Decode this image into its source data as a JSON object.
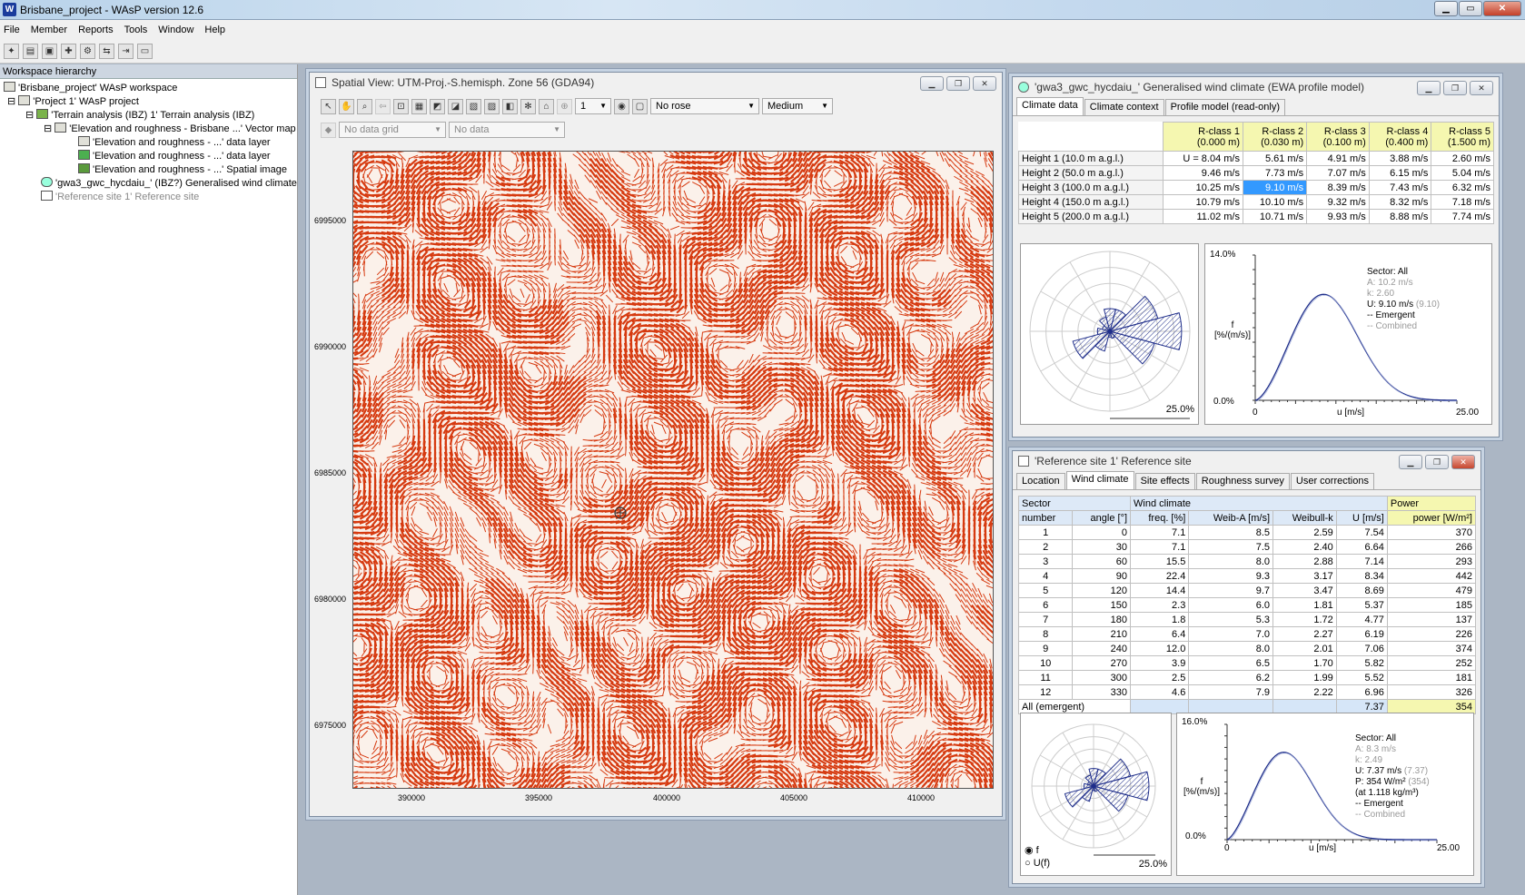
{
  "app": {
    "title": "Brisbane_project - WAsP version 12.6",
    "icon": "W"
  },
  "menu": [
    "File",
    "Member",
    "Reports",
    "Tools",
    "Window",
    "Help"
  ],
  "workspace": {
    "header": "Workspace hierarchy",
    "items": [
      {
        "label": "'Brisbane_project' WAsP workspace",
        "gray": false
      },
      {
        "label": "'Project 1' WAsP project",
        "gray": false
      },
      {
        "label": "'Terrain analysis (IBZ) 1' Terrain analysis (IBZ)",
        "gray": false
      },
      {
        "label": "'Elevation and roughness - Brisbane ...' Vector map",
        "gray": false
      },
      {
        "label": "'Elevation and roughness - ...' data layer",
        "gray": false
      },
      {
        "label": "'Elevation and roughness - ...' data layer",
        "gray": false
      },
      {
        "label": "'Elevation and roughness - ...' Spatial image",
        "gray": false
      },
      {
        "label": "'gwa3_gwc_hycdaiu_' (IBZ?) Generalised wind climate",
        "gray": false
      },
      {
        "label": "'Reference site 1' Reference site",
        "gray": true
      }
    ]
  },
  "spatial": {
    "title": "Spatial View: UTM-Proj.-S.hemisph. Zone 56 (GDA94)",
    "count": "1",
    "rose": "No rose",
    "size": "Medium",
    "grid": "No data grid",
    "data": "No data",
    "yticks": [
      "6995000",
      "6990000",
      "6985000",
      "6980000",
      "6975000"
    ],
    "xticks": [
      "390000",
      "395000",
      "400000",
      "405000",
      "410000"
    ]
  },
  "gwc": {
    "title": "'gwa3_gwc_hycdaiu_' Generalised wind climate (EWA profile model)",
    "tabs": [
      "Climate data",
      "Climate context",
      "Profile model (read-only)"
    ],
    "cols": [
      [
        "R-class 1",
        "(0.000 m)"
      ],
      [
        "R-class 2",
        "(0.030 m)"
      ],
      [
        "R-class 3",
        "(0.100 m)"
      ],
      [
        "R-class 4",
        "(0.400 m)"
      ],
      [
        "R-class 5",
        "(1.500 m)"
      ]
    ],
    "rows": [
      {
        "h": "Height 1  (10.0 m a.g.l.)",
        "v": [
          "U = 8.04 m/s",
          "5.61 m/s",
          "4.91 m/s",
          "3.88 m/s",
          "2.60 m/s"
        ]
      },
      {
        "h": "Height 2  (50.0 m a.g.l.)",
        "v": [
          "9.46 m/s",
          "7.73 m/s",
          "7.07 m/s",
          "6.15 m/s",
          "5.04 m/s"
        ]
      },
      {
        "h": "Height 3  (100.0 m a.g.l.)",
        "v": [
          "10.25 m/s",
          "9.10 m/s",
          "8.39 m/s",
          "7.43 m/s",
          "6.32 m/s"
        ]
      },
      {
        "h": "Height 4  (150.0 m a.g.l.)",
        "v": [
          "10.79 m/s",
          "10.10 m/s",
          "9.32 m/s",
          "8.32 m/s",
          "7.18 m/s"
        ]
      },
      {
        "h": "Height 5  (200.0 m a.g.l.)",
        "v": [
          "11.02 m/s",
          "10.71 m/s",
          "9.93 m/s",
          "8.88 m/s",
          "7.74 m/s"
        ]
      }
    ],
    "rose_max": "25.0%",
    "chart_ymax": "14.0%",
    "chart_ymin": "0.0%",
    "x0": "0",
    "xlabel": "u [m/s]",
    "xmax": "25.00",
    "ylabel1": "f",
    "ylabel2": "[%/(m/s)]",
    "legend": {
      "sector": "Sector: All",
      "a": "A: 10.2 m/s",
      "k": "k: 2.60",
      "u": "U: 9.10 m/s",
      "u_paren": "(9.10)",
      "emergent": "-- Emergent",
      "combined": "-- Combined"
    },
    "rose_values": [
      7.1,
      7.1,
      15.5,
      22.4,
      14.4,
      2.3,
      1.8,
      6.4,
      12.0,
      3.9,
      2.5,
      4.6
    ]
  },
  "ref": {
    "title": "'Reference site 1' Reference site",
    "tabs": [
      "Location",
      "Wind climate",
      "Site effects",
      "Roughness survey",
      "User corrections"
    ],
    "h_sector": "Sector",
    "h_wind": "Wind climate",
    "h_power": "Power",
    "cols": [
      "number",
      "angle [°]",
      "freq. [%]",
      "Weib-A [m/s]",
      "Weibull-k",
      "U [m/s]",
      "power [W/m²]"
    ],
    "rows": [
      [
        "1",
        "0",
        "7.1",
        "8.5",
        "2.59",
        "7.54",
        "370"
      ],
      [
        "2",
        "30",
        "7.1",
        "7.5",
        "2.40",
        "6.64",
        "266"
      ],
      [
        "3",
        "60",
        "15.5",
        "8.0",
        "2.88",
        "7.14",
        "293"
      ],
      [
        "4",
        "90",
        "22.4",
        "9.3",
        "3.17",
        "8.34",
        "442"
      ],
      [
        "5",
        "120",
        "14.4",
        "9.7",
        "3.47",
        "8.69",
        "479"
      ],
      [
        "6",
        "150",
        "2.3",
        "6.0",
        "1.81",
        "5.37",
        "185"
      ],
      [
        "7",
        "180",
        "1.8",
        "5.3",
        "1.72",
        "4.77",
        "137"
      ],
      [
        "8",
        "210",
        "6.4",
        "7.0",
        "2.27",
        "6.19",
        "226"
      ],
      [
        "9",
        "240",
        "12.0",
        "8.0",
        "2.01",
        "7.06",
        "374"
      ],
      [
        "10",
        "270",
        "3.9",
        "6.5",
        "1.70",
        "5.82",
        "252"
      ],
      [
        "11",
        "300",
        "2.5",
        "6.2",
        "1.99",
        "5.52",
        "181"
      ],
      [
        "12",
        "330",
        "4.6",
        "7.9",
        "2.22",
        "6.96",
        "326"
      ]
    ],
    "all": {
      "label": "All (emergent)",
      "u": "7.37",
      "p": "354"
    },
    "rose_max": "25.0%",
    "chart_ymax": "16.0%",
    "chart_ymin": "0.0%",
    "x0": "0",
    "xlabel": "u [m/s]",
    "xmax": "25.00",
    "ylabel1": "f",
    "ylabel2": "[%/(m/s)]",
    "radio_f": "f",
    "radio_uf": "U(f)",
    "legend": {
      "sector": "Sector: All",
      "a": "A: 8.3 m/s",
      "k": "k: 2.49",
      "u": "U: 7.37 m/s",
      "u_paren": "(7.37)",
      "p": "P: 354 W/m²",
      "p_paren": "(354)",
      "rho": "(at 1.118 kg/m³)",
      "emergent": "-- Emergent",
      "combined": "-- Combined"
    }
  },
  "colors": {
    "contour": "#d63a10",
    "accent": "#3399ff",
    "yellow": "#f5f7b0"
  }
}
